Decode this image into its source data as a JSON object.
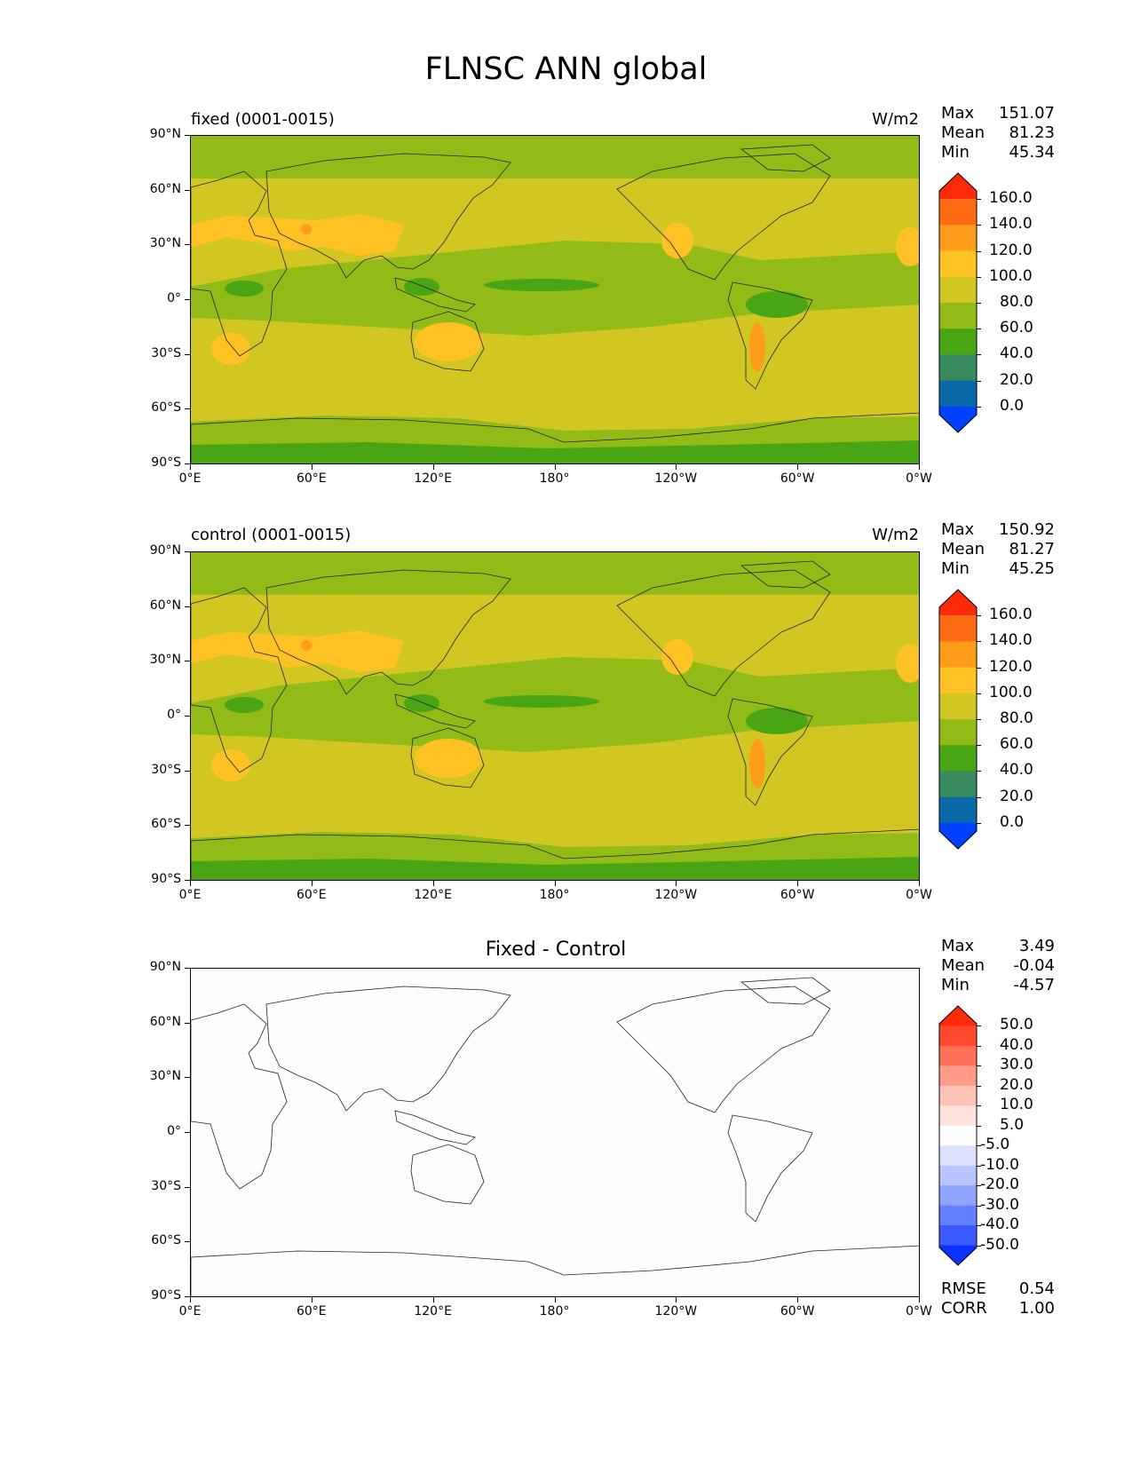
{
  "figure": {
    "title": "FLNSC ANN global"
  },
  "axes": {
    "y_ticks": [
      "90°N",
      "60°N",
      "30°N",
      "0°",
      "30°S",
      "60°S",
      "90°S"
    ],
    "x_ticks": [
      "0°E",
      "60°E",
      "120°E",
      "180°",
      "120°W",
      "60°W",
      "0°W"
    ]
  },
  "panels": [
    {
      "title_left": "fixed (0001-0015)",
      "title_right": "W/m2",
      "title_center": "",
      "stats": {
        "max_label": "Max",
        "max": "151.07",
        "mean_label": "Mean",
        "mean": "81.23",
        "min_label": "Min",
        "min": "45.34"
      },
      "colorbar": {
        "labels": [
          "160.0",
          "140.0",
          "120.0",
          "100.0",
          "80.0",
          "60.0",
          "40.0",
          "20.0",
          "0.0"
        ],
        "colors": [
          "#ff2a0a",
          "#ff6a14",
          "#ff9c19",
          "#ffc225",
          "#d2c622",
          "#92bb17",
          "#4aa514",
          "#3a8a60",
          "#0a6aa8",
          "#0040ff"
        ]
      }
    },
    {
      "title_left": "control (0001-0015)",
      "title_right": "W/m2",
      "title_center": "",
      "stats": {
        "max_label": "Max",
        "max": "150.92",
        "mean_label": "Mean",
        "mean": "81.27",
        "min_label": "Min",
        "min": "45.25"
      },
      "colorbar": {
        "labels": [
          "160.0",
          "140.0",
          "120.0",
          "100.0",
          "80.0",
          "60.0",
          "40.0",
          "20.0",
          "0.0"
        ],
        "colors": [
          "#ff2a0a",
          "#ff6a14",
          "#ff9c19",
          "#ffc225",
          "#d2c622",
          "#92bb17",
          "#4aa514",
          "#3a8a60",
          "#0a6aa8",
          "#0040ff"
        ]
      }
    },
    {
      "title_left": "",
      "title_right": "",
      "title_center": "Fixed - Control",
      "stats": {
        "max_label": "Max",
        "max": "3.49",
        "mean_label": "Mean",
        "mean": "-0.04",
        "min_label": "Min",
        "min": "-4.57"
      },
      "colorbar": {
        "labels": [
          "50.0",
          "40.0",
          "30.0",
          "20.0",
          "10.0",
          "5.0",
          "-5.0",
          "-10.0",
          "-20.0",
          "-30.0",
          "-40.0",
          "-50.0"
        ],
        "colors": [
          "#ff2a0a",
          "#ff4a30",
          "#ff7058",
          "#ff9b88",
          "#ffc4b8",
          "#ffe2dc",
          "#ffffff",
          "#dde3ff",
          "#b9c5ff",
          "#8fa3ff",
          "#6480ff",
          "#3a5cff",
          "#0a33ff"
        ]
      },
      "rmse_label": "RMSE",
      "rmse": "0.54",
      "corr_label": "CORR",
      "corr": "1.00"
    }
  ],
  "chart_data": [
    {
      "type": "heatmap",
      "title": "FLNSC ANN global",
      "subtitle": "fixed (0001-0015)",
      "units": "W/m2",
      "x_ticks": [
        "0°E",
        "60°E",
        "120°E",
        "180°",
        "120°W",
        "60°W",
        "0°W"
      ],
      "y_ticks": [
        "90°N",
        "60°N",
        "30°N",
        "0°",
        "30°S",
        "60°S",
        "90°S"
      ],
      "max": 151.07,
      "mean": 81.23,
      "min": 45.34,
      "color_levels": [
        0,
        20,
        40,
        60,
        80,
        100,
        120,
        140,
        160
      ]
    },
    {
      "type": "heatmap",
      "title": "FLNSC ANN global",
      "subtitle": "control (0001-0015)",
      "units": "W/m2",
      "x_ticks": [
        "0°E",
        "60°E",
        "120°E",
        "180°",
        "120°W",
        "60°W",
        "0°W"
      ],
      "y_ticks": [
        "90°N",
        "60°N",
        "30°N",
        "0°",
        "30°S",
        "60°S",
        "90°S"
      ],
      "max": 150.92,
      "mean": 81.27,
      "min": 45.25,
      "color_levels": [
        0,
        20,
        40,
        60,
        80,
        100,
        120,
        140,
        160
      ]
    },
    {
      "type": "heatmap",
      "title": "Fixed - Control",
      "x_ticks": [
        "0°E",
        "60°E",
        "120°E",
        "180°",
        "120°W",
        "60°W",
        "0°W"
      ],
      "y_ticks": [
        "90°N",
        "60°N",
        "30°N",
        "0°",
        "30°S",
        "60°S",
        "90°S"
      ],
      "max": 3.49,
      "mean": -0.04,
      "min": -4.57,
      "rmse": 0.54,
      "corr": 1.0,
      "color_levels": [
        -50,
        -40,
        -30,
        -20,
        -10,
        -5,
        5,
        10,
        20,
        30,
        40,
        50
      ]
    }
  ]
}
